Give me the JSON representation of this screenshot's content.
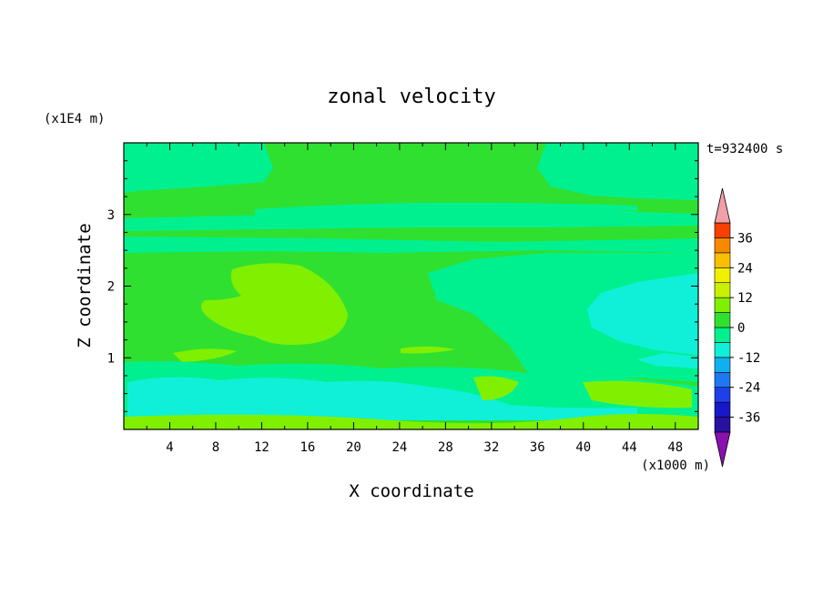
{
  "chart_data": {
    "type": "heatmap",
    "title": "zonal velocity",
    "xlabel": "X coordinate",
    "ylabel": "Z coordinate",
    "x_unit": "(x1000 m)",
    "y_unit": "(x1E4 m)",
    "time_label": "t=932400 s",
    "x_ticks": [
      "4",
      "8",
      "12",
      "16",
      "20",
      "24",
      "28",
      "32",
      "36",
      "40",
      "44",
      "48"
    ],
    "x_tick_values": [
      4,
      8,
      12,
      16,
      20,
      24,
      28,
      32,
      36,
      40,
      44,
      48
    ],
    "y_ticks": [
      "1",
      "2",
      "3"
    ],
    "y_tick_values": [
      1,
      2,
      3
    ],
    "xlim": [
      0,
      50
    ],
    "ylim": [
      0,
      4
    ],
    "colorbar": {
      "labels": [
        "36",
        "24",
        "12",
        "0",
        "-12",
        "-24",
        "-36"
      ],
      "label_values": [
        36,
        24,
        12,
        0,
        -12,
        -24,
        -36
      ],
      "levels": [
        -42,
        -36,
        -30,
        -24,
        -18,
        -12,
        -6,
        0,
        6,
        12,
        18,
        24,
        30,
        36,
        42
      ],
      "colors": [
        "#6a0aa8",
        "#2a10a0",
        "#1818c8",
        "#1f3fe8",
        "#1e78f0",
        "#10b0f0",
        "#10f0d8",
        "#00f090",
        "#30e030",
        "#80f000",
        "#c8f000",
        "#f0f000",
        "#f8c000",
        "#f88800",
        "#f84000",
        "#f01010"
      ],
      "under_color": "#8a10b0",
      "over_color": "#f0a0a8"
    },
    "fields": [
      {
        "name": "upper-light-band",
        "value": 3,
        "x": [
          0,
          50
        ],
        "z": [
          2.55,
          2.95
        ]
      },
      {
        "name": "lower-mid-band",
        "value": 3,
        "x": [
          0,
          50
        ],
        "z": [
          2.6,
          2.7
        ]
      },
      {
        "name": "top-right-region",
        "value": -3,
        "x": [
          37,
          50
        ],
        "z": [
          3.25,
          4.0
        ]
      },
      {
        "name": "top-left-region",
        "value": 3,
        "x": [
          0,
          12
        ],
        "z": [
          3.3,
          4.0
        ]
      },
      {
        "name": "right-cyan-region",
        "value": -8,
        "x": [
          27,
          50
        ],
        "z": [
          0.6,
          2.4
        ]
      },
      {
        "name": "right-cyan-core",
        "value": -14,
        "x": [
          41,
          50
        ],
        "z": [
          1.1,
          1.95
        ]
      },
      {
        "name": "left-yellowgreen-blob",
        "value": 8,
        "x": [
          7,
          20
        ],
        "z": [
          1.3,
          2.35
        ]
      },
      {
        "name": "near-surface-cyan",
        "value": -9,
        "x": [
          0,
          50
        ],
        "z": [
          0.05,
          0.7
        ]
      },
      {
        "name": "near-surface-yellowgreen",
        "value": 8,
        "x": [
          0,
          50
        ],
        "z": [
          0,
          0.15
        ]
      }
    ]
  }
}
